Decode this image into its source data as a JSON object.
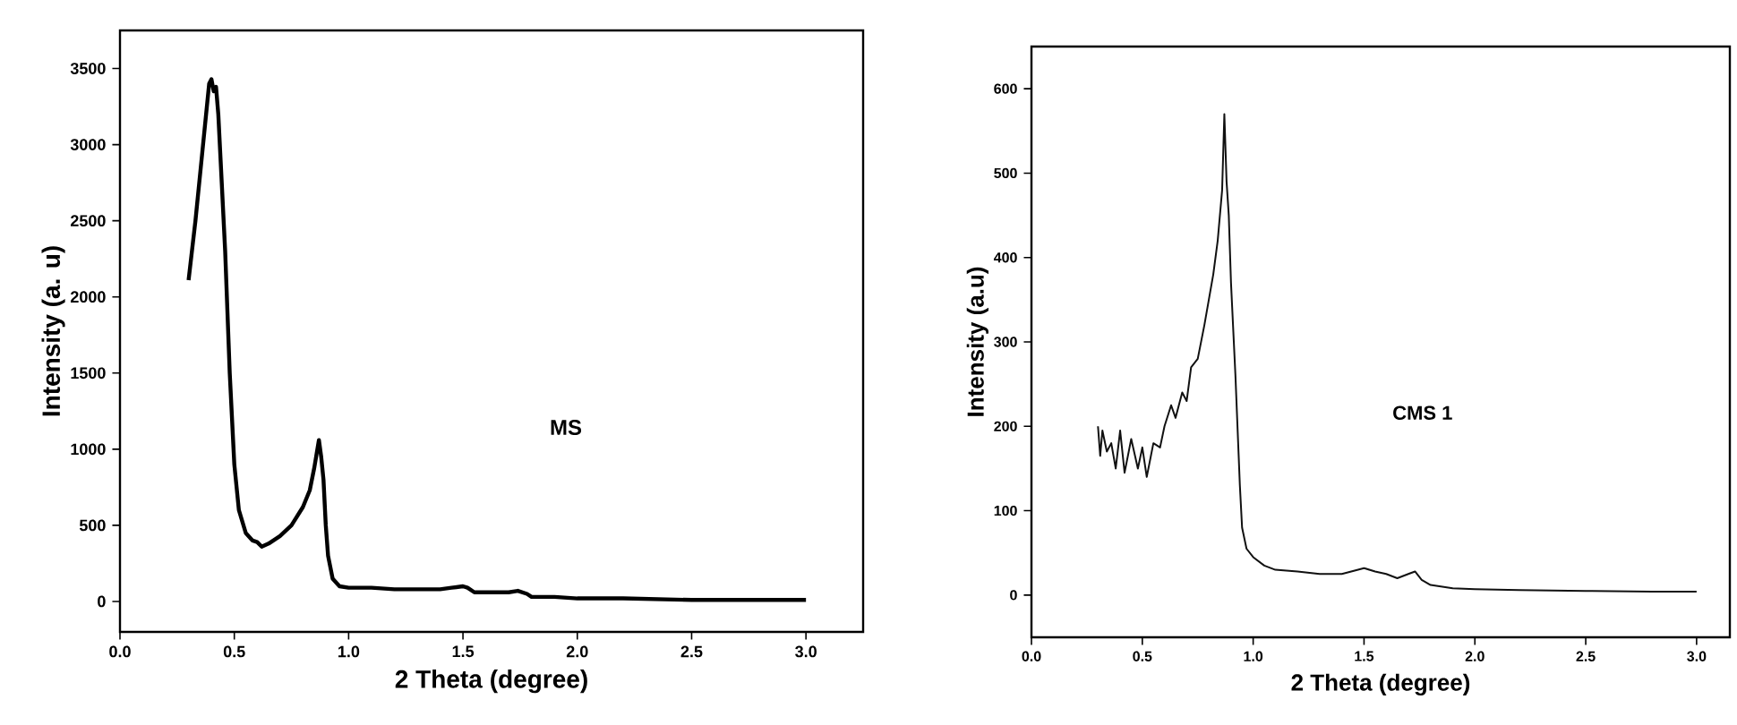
{
  "chart_data": [
    {
      "type": "line",
      "xlabel": "**2** Theta **(degree)**",
      "ylabel": "Intensity (a. u)",
      "annotations": [
        "MS"
      ],
      "series": [
        {
          "color": "#000000",
          "x": [
            0.3,
            0.33,
            0.36,
            0.38,
            0.39,
            0.4,
            0.41,
            0.42,
            0.43,
            0.44,
            0.46,
            0.48,
            0.5,
            0.52,
            0.55,
            0.58,
            0.6,
            0.62,
            0.65,
            0.7,
            0.75,
            0.8,
            0.83,
            0.85,
            0.87,
            0.88,
            0.89,
            0.9,
            0.91,
            0.93,
            0.96,
            1.0,
            1.1,
            1.2,
            1.3,
            1.4,
            1.45,
            1.5,
            1.52,
            1.55,
            1.6,
            1.7,
            1.74,
            1.78,
            1.8,
            1.9,
            2.0,
            2.2,
            2.5,
            2.8,
            3.0
          ],
          "values": [
            2110,
            2500,
            2950,
            3250,
            3400,
            3430,
            3350,
            3380,
            3200,
            2900,
            2300,
            1500,
            900,
            600,
            450,
            400,
            390,
            360,
            380,
            430,
            500,
            620,
            730,
            880,
            1060,
            950,
            800,
            500,
            300,
            150,
            100,
            90,
            90,
            80,
            80,
            80,
            90,
            100,
            90,
            60,
            60,
            60,
            70,
            50,
            30,
            30,
            20,
            20,
            10,
            10,
            10
          ]
        }
      ],
      "xlim": [
        0,
        3.25
      ],
      "ylim": [
        -200,
        3750
      ],
      "xticks": [
        {
          "value": 0,
          "label": "0.0"
        },
        0.5,
        {
          "value": 1,
          "label": "1.0"
        },
        1.5,
        {
          "value": 2,
          "label": "2.0"
        },
        2.5,
        {
          "value": 3,
          "label": "3.0"
        }
      ],
      "yticks": [
        0,
        500,
        1000,
        1500,
        2000,
        2500,
        3000,
        3500
      ],
      "line_style": "solid",
      "marker": "none",
      "grid": false
    },
    {
      "type": "line",
      "xlabel": "2 Theta (degree)",
      "ylabel": "Intensity (a.u)",
      "annotations": [
        "CMS 1"
      ],
      "series": [
        {
          "color": "#111111",
          "x": [
            0.3,
            0.31,
            0.32,
            0.34,
            0.36,
            0.38,
            0.4,
            0.42,
            0.45,
            0.48,
            0.5,
            0.52,
            0.55,
            0.58,
            0.6,
            0.63,
            0.65,
            0.68,
            0.7,
            0.72,
            0.75,
            0.78,
            0.8,
            0.82,
            0.84,
            0.86,
            0.87,
            0.88,
            0.89,
            0.9,
            0.92,
            0.94,
            0.95,
            0.97,
            1.0,
            1.05,
            1.1,
            1.2,
            1.3,
            1.4,
            1.5,
            1.55,
            1.6,
            1.65,
            1.7,
            1.73,
            1.76,
            1.8,
            1.9,
            2.0,
            2.2,
            2.5,
            2.8,
            3.0
          ],
          "values": [
            200,
            165,
            195,
            170,
            180,
            150,
            195,
            145,
            185,
            150,
            175,
            140,
            180,
            175,
            200,
            225,
            210,
            240,
            230,
            270,
            280,
            320,
            350,
            380,
            420,
            480,
            570,
            490,
            450,
            370,
            260,
            130,
            80,
            55,
            45,
            35,
            30,
            28,
            25,
            25,
            32,
            28,
            25,
            20,
            25,
            28,
            18,
            12,
            8,
            7,
            6,
            5,
            4,
            4
          ]
        }
      ],
      "xlim": [
        0,
        3.15
      ],
      "ylim": [
        -50,
        650
      ],
      "xticks": [
        {
          "value": 0,
          "label": "0.0"
        },
        0.5,
        {
          "value": 1,
          "label": "1.0"
        },
        1.5,
        {
          "value": 2,
          "label": "2.0"
        },
        2.5,
        {
          "value": 3,
          "label": "3.0"
        }
      ],
      "yticks": [
        0,
        100,
        200,
        300,
        400,
        500,
        600
      ],
      "line_style": "solid",
      "marker": "none",
      "grid": false
    }
  ]
}
